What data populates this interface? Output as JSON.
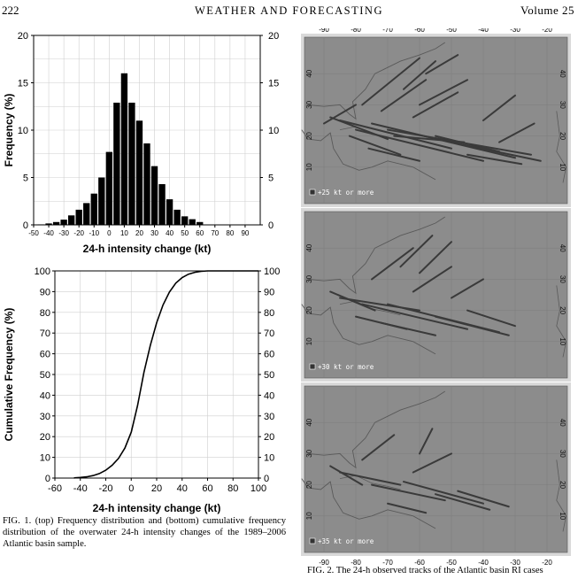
{
  "header": {
    "page_number": "222",
    "journal": "WEATHER AND FORECASTING",
    "volume": "Volume 25"
  },
  "chart_data": [
    {
      "type": "bar",
      "xlabel": "24-h  intensity change (kt)",
      "ylabel": "Frequency (%)",
      "x_tick_labels": [
        "-50",
        "-40",
        "-30",
        "-20",
        "-10",
        "0",
        "10",
        "20",
        "30",
        "40",
        "50",
        "60",
        "70",
        "80",
        "90"
      ],
      "y_tick_labels": [
        "0",
        "5",
        "10",
        "15",
        "20"
      ],
      "xlim": [
        -50,
        100
      ],
      "ylim": [
        0,
        20
      ],
      "bin_width": 5,
      "x": [
        -45,
        -40,
        -35,
        -30,
        -25,
        -20,
        -15,
        -10,
        -5,
        0,
        5,
        10,
        15,
        20,
        25,
        30,
        35,
        40,
        45,
        50,
        55,
        60
      ],
      "values": [
        0.05,
        0.15,
        0.3,
        0.55,
        1.0,
        1.6,
        2.3,
        3.3,
        5.0,
        7.7,
        12.9,
        16.0,
        12.9,
        11.0,
        8.6,
        6.2,
        4.3,
        2.7,
        1.6,
        0.9,
        0.6,
        0.3
      ]
    },
    {
      "type": "line",
      "xlabel": "24-h intensity change (kt)",
      "ylabel": "Cumulative Frequency (%)",
      "x_tick_labels": [
        "-60",
        "-40",
        "-20",
        "0",
        "20",
        "40",
        "60",
        "80",
        "100"
      ],
      "y_tick_labels": [
        "0",
        "10",
        "20",
        "30",
        "40",
        "50",
        "60",
        "70",
        "80",
        "90",
        "100"
      ],
      "xlim": [
        -60,
        100
      ],
      "ylim": [
        0,
        100
      ],
      "x": [
        -45,
        -40,
        -35,
        -30,
        -25,
        -20,
        -15,
        -10,
        -5,
        0,
        5,
        10,
        15,
        20,
        25,
        30,
        35,
        40,
        45,
        50,
        55,
        60,
        70,
        100
      ],
      "values": [
        0.1,
        0.3,
        0.6,
        1.2,
        2.2,
        3.8,
        6.2,
        9.5,
        14.5,
        22.2,
        35.0,
        51.0,
        64.0,
        75.0,
        83.6,
        89.8,
        94.1,
        96.8,
        98.4,
        99.3,
        99.8,
        100,
        100,
        100
      ]
    }
  ],
  "fig1_caption": "FIG. 1. (top) Frequency distribution and (bottom) cumulative frequency distribution of the overwater 24-h intensity changes of the 1989–2006 Atlantic basin sample.",
  "maps": {
    "lon_labels": [
      "-90",
      "-80",
      "-70",
      "-60",
      "-50",
      "-40",
      "-30",
      "-20"
    ],
    "lat_labels": [
      "10",
      "20",
      "30",
      "40"
    ],
    "panels": [
      {
        "legend": "+25 kt or more"
      },
      {
        "legend": "+30 kt or more"
      },
      {
        "legend": "+35 kt or more"
      }
    ],
    "colors": {
      "ocean": "#8c8c8c",
      "track": "#3a3a3a",
      "coast": "#5a5a5a",
      "frame": "#d9d9d9"
    }
  },
  "fig2_caption": "FIG. 2. The 24-h observed tracks of the Atlantic basin RI cases"
}
